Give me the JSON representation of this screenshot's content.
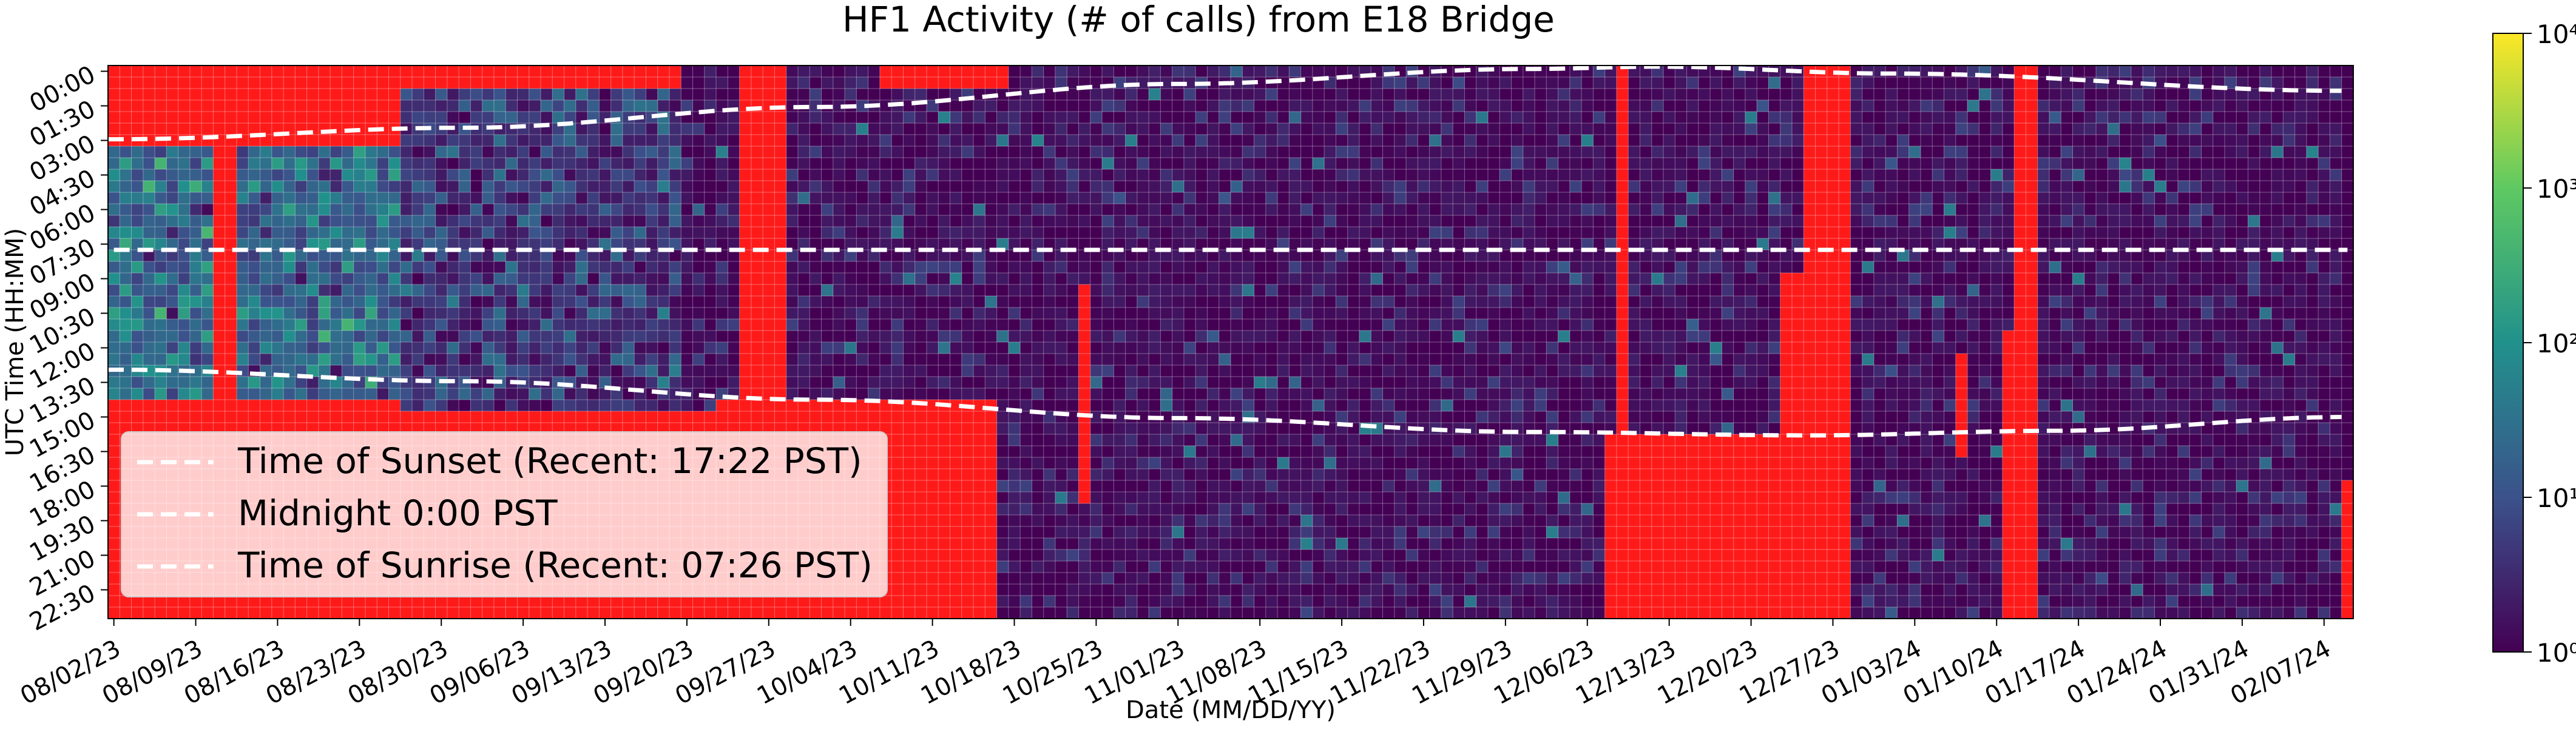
{
  "chart_data": {
    "type": "heatmap",
    "title": "HF1 Activity (# of calls) from E18 Bridge",
    "xlabel": "Date (MM/DD/YY)",
    "ylabel": "UTC Time (HH:MM)",
    "start_date": "08/02/23",
    "end_date": "02/09/24",
    "x_tick_labels": [
      "08/02/23",
      "08/09/23",
      "08/16/23",
      "08/23/23",
      "08/30/23",
      "09/06/23",
      "09/13/23",
      "09/20/23",
      "09/27/23",
      "10/04/23",
      "10/11/23",
      "10/18/23",
      "10/25/23",
      "11/01/23",
      "11/08/23",
      "11/15/23",
      "11/22/23",
      "11/29/23",
      "12/06/23",
      "12/13/23",
      "12/20/23",
      "12/27/23",
      "01/03/24",
      "01/10/24",
      "01/17/24",
      "01/24/24",
      "01/31/24",
      "02/07/24"
    ],
    "y_tick_labels": [
      "00:00",
      "01:30",
      "03:00",
      "04:30",
      "06:00",
      "07:30",
      "09:00",
      "10:30",
      "12:00",
      "13:30",
      "15:00",
      "16:30",
      "18:00",
      "19:30",
      "21:00",
      "22:30"
    ],
    "time_bin_minutes": 30,
    "colorbar": {
      "scale": "log",
      "colormap": "viridis",
      "range": [
        1,
        10000
      ],
      "tick_labels": [
        "10⁰",
        "10¹",
        "10²",
        "10³",
        "10⁴"
      ]
    },
    "missing_data_color": "#ff1a1a",
    "legend": {
      "placement": "lower-left",
      "entries": [
        "Time of Sunset (Recent: 17:22 PST)",
        "Midnight 0:00 PST",
        "Time of Sunrise (Recent: 07:26 PST)"
      ]
    },
    "lines": {
      "sunset_utc_hours": {
        "08/02/23": 3.2,
        "09/01/23": 2.7,
        "10/01/23": 1.8,
        "11/01/23": 0.8,
        "12/01/23": 0.15,
        "12/12/23": 0.05,
        "01/01/24": 0.35,
        "02/09/24": 1.1
      },
      "midnight_utc_hours": 8.0,
      "sunrise_utc_hours": {
        "08/02/23": 13.2,
        "09/01/23": 13.7,
        "10/01/23": 14.5,
        "11/01/23": 15.3,
        "12/01/23": 15.9,
        "12/25/23": 16.05,
        "01/15/24": 15.85,
        "02/09/24": 15.25
      }
    },
    "missing_data_periods": [
      {
        "from": "08/02/23",
        "to": "09/20/23",
        "utc_from": "00:00",
        "utc_to": "01:00"
      },
      {
        "from": "08/02/23",
        "to": "08/27/23",
        "utc_from": "01:00",
        "utc_to": "03:30"
      },
      {
        "from": "08/02/23",
        "to": "08/27/23",
        "utc_from": "14:30",
        "utc_to": "24:00"
      },
      {
        "from": "08/27/23",
        "to": "09/23/23",
        "utc_from": "15:00",
        "utc_to": "24:00"
      },
      {
        "from": "09/23/23",
        "to": "10/17/23",
        "utc_from": "14:30",
        "utc_to": "24:00"
      },
      {
        "from": "08/11/23",
        "to": "08/13/23",
        "utc_from": "00:00",
        "utc_to": "24:00"
      },
      {
        "from": "09/25/23",
        "to": "09/29/23",
        "utc_from": "00:00",
        "utc_to": "24:00"
      },
      {
        "from": "10/07/23",
        "to": "10/18/23",
        "utc_from": "00:00",
        "utc_to": "01:00"
      },
      {
        "from": "10/24/23",
        "to": "10/25/23",
        "utc_from": "09:30",
        "utc_to": "19:00"
      },
      {
        "from": "12/09/23",
        "to": "12/10/23",
        "utc_from": "00:00",
        "utc_to": "24:00"
      },
      {
        "from": "12/08/23",
        "to": "12/25/23",
        "utc_from": "16:00",
        "utc_to": "24:00"
      },
      {
        "from": "12/25/23",
        "to": "12/29/23",
        "utc_from": "00:00",
        "utc_to": "24:00"
      },
      {
        "from": "12/23/23",
        "to": "12/25/23",
        "utc_from": "09:00",
        "utc_to": "24:00"
      },
      {
        "from": "01/07/24",
        "to": "01/08/24",
        "utc_from": "12:30",
        "utc_to": "17:00"
      },
      {
        "from": "01/11/24",
        "to": "01/12/24",
        "utc_from": "11:30",
        "utc_to": "24:00"
      },
      {
        "from": "01/12/24",
        "to": "01/14/24",
        "utc_from": "00:00",
        "utc_to": "24:00"
      },
      {
        "from": "02/09/24",
        "to": "02/09/24",
        "utc_from": "18:00",
        "utc_to": "24:00"
      }
    ],
    "activity_summary": [
      {
        "from": "08/02/23",
        "to": "08/27/23",
        "utc_from": "03:30",
        "utc_to": "14:30",
        "typical_calls": 30,
        "peak_calls": 500
      },
      {
        "from": "08/27/23",
        "to": "09/20/23",
        "utc_from": "01:00",
        "utc_to": "15:00",
        "typical_calls": 5,
        "peak_calls": 60
      },
      {
        "from": "09/20/23",
        "to": "02/09/24",
        "utc_from": "00:00",
        "utc_to": "24:00",
        "typical_calls": 1,
        "peak_calls": 60
      }
    ]
  }
}
